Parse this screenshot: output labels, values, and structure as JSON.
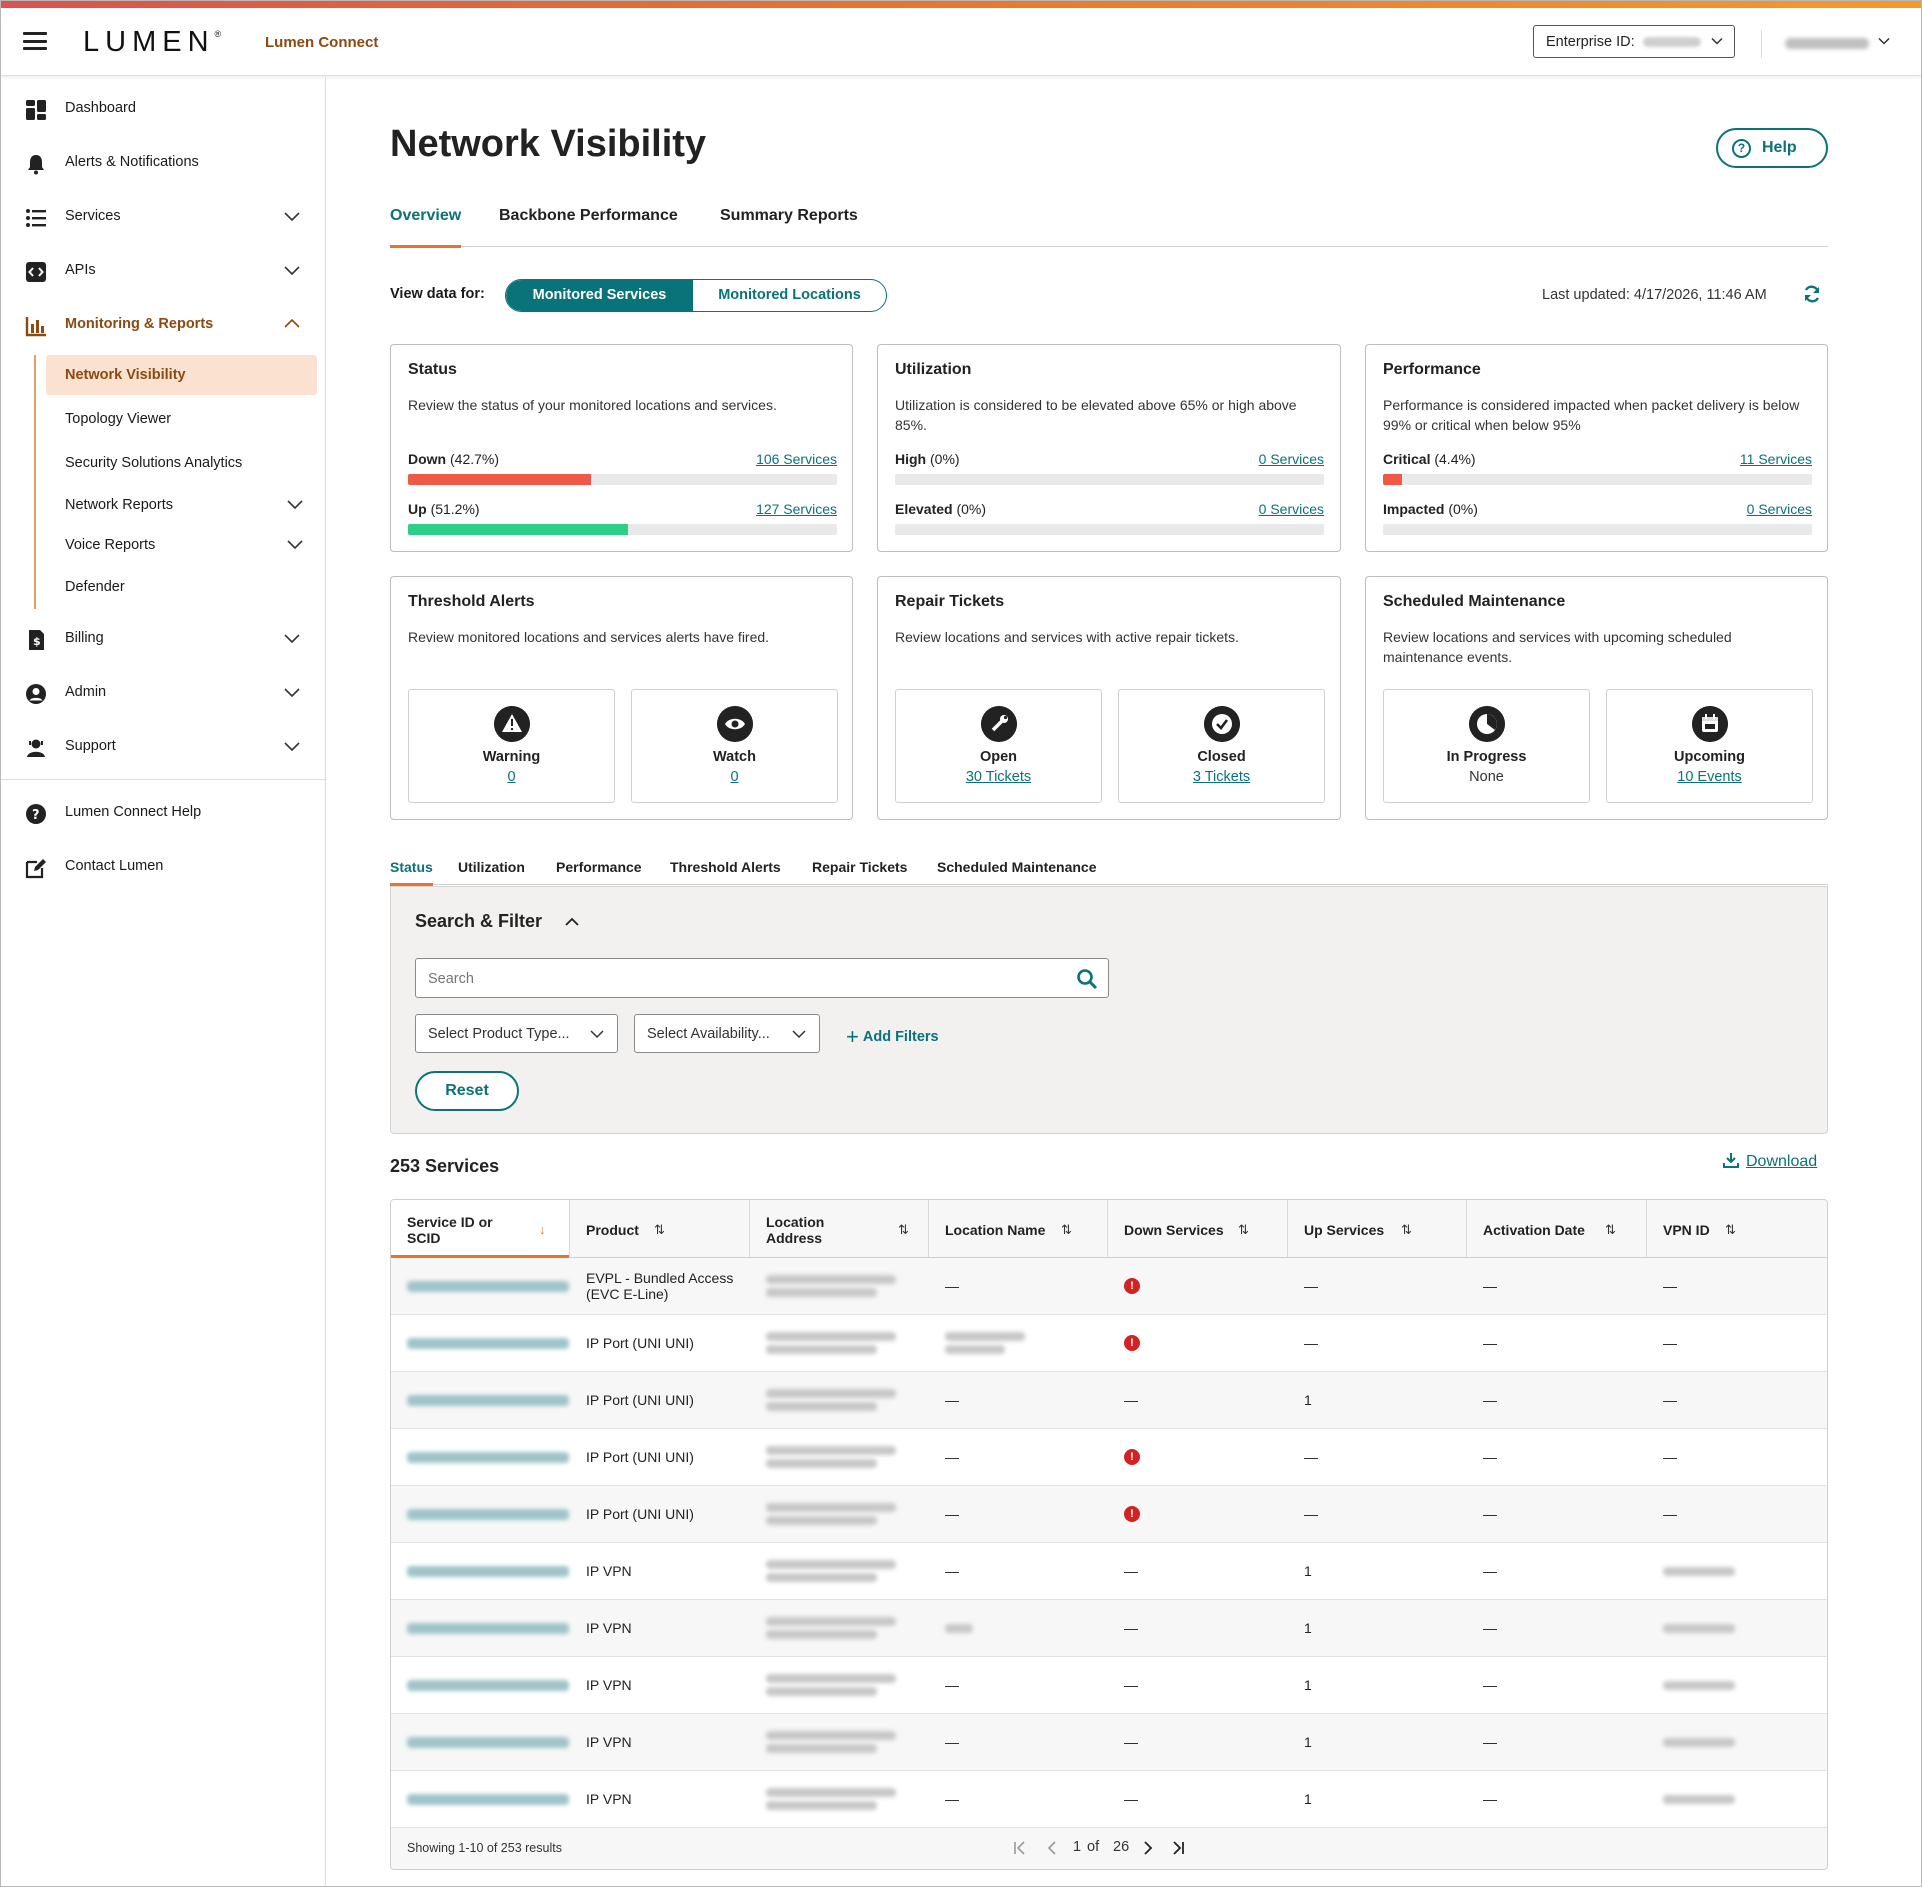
{
  "header": {
    "logo": "LUMEN",
    "app_name": "Lumen Connect",
    "enterprise_label": "Enterprise ID:"
  },
  "sidebar": {
    "items": [
      {
        "label": "Dashboard",
        "icon": "dashboard-icon"
      },
      {
        "label": "Alerts & Notifications",
        "icon": "bell-icon"
      },
      {
        "label": "Services",
        "icon": "list-icon"
      },
      {
        "label": "APIs",
        "icon": "code-icon"
      },
      {
        "label": "Monitoring & Reports",
        "icon": "chart-icon"
      }
    ],
    "sub_items": [
      "Network Visibility",
      "Topology Viewer",
      "Security Solutions Analytics",
      "Network Reports",
      "Voice Reports",
      "Defender"
    ],
    "lower_items": [
      "Billing",
      "Admin",
      "Support"
    ],
    "footer_items": [
      "Lumen Connect Help",
      "Contact Lumen"
    ]
  },
  "page": {
    "title": "Network Visibility",
    "help": "Help",
    "tabs": [
      "Overview",
      "Backbone Performance",
      "Summary Reports"
    ],
    "view_data_label": "View data for:",
    "toggle": [
      "Monitored Services",
      "Monitored Locations"
    ],
    "last_updated": "Last updated: 4/17/2026, 11:46 AM"
  },
  "cards": {
    "status": {
      "title": "Status",
      "desc": "Review the status of your monitored locations and services.",
      "metrics": [
        {
          "name": "Down",
          "pct": "(42.7%)",
          "link": "106 Services",
          "fill": 0.427,
          "color": "#ef5a47"
        },
        {
          "name": "Up",
          "pct": "(51.2%)",
          "link": "127 Services",
          "fill": 0.512,
          "color": "#2ecf88"
        }
      ]
    },
    "utilization": {
      "title": "Utilization",
      "desc": "Utilization is considered to be elevated above 65% or high above 85%.",
      "metrics": [
        {
          "name": "High",
          "pct": "(0%)",
          "link": "0 Services",
          "fill": 0
        },
        {
          "name": "Elevated",
          "pct": "(0%)",
          "link": "0 Services",
          "fill": 0
        }
      ]
    },
    "performance": {
      "title": "Performance",
      "desc": "Performance is considered impacted when packet delivery is below 99% or critical when below 95%",
      "metrics": [
        {
          "name": "Critical",
          "pct": "(4.4%)",
          "link": "11 Services",
          "fill": 0.044,
          "color": "#ef5a47"
        },
        {
          "name": "Impacted",
          "pct": "(0%)",
          "link": "0 Services",
          "fill": 0
        }
      ]
    },
    "threshold": {
      "title": "Threshold Alerts",
      "desc": "Review monitored locations and services alerts have fired.",
      "subs": [
        {
          "label": "Warning",
          "value": "0",
          "icon": "warning-icon"
        },
        {
          "label": "Watch",
          "value": "0",
          "icon": "eye-icon"
        }
      ]
    },
    "repair": {
      "title": "Repair Tickets",
      "desc": "Review locations and services with active repair tickets.",
      "subs": [
        {
          "label": "Open",
          "value": "30 Tickets",
          "icon": "wrench-icon"
        },
        {
          "label": "Closed",
          "value": "3 Tickets",
          "icon": "check-icon"
        }
      ]
    },
    "maintenance": {
      "title": "Scheduled Maintenance",
      "desc": "Review locations and services with upcoming scheduled maintenance events.",
      "subs": [
        {
          "label": "In Progress",
          "value": "None",
          "icon": "clock-icon"
        },
        {
          "label": "Upcoming",
          "value": "10 Events",
          "icon": "calendar-icon"
        }
      ]
    }
  },
  "section_tabs": [
    "Status",
    "Utilization",
    "Performance",
    "Threshold Alerts",
    "Repair Tickets",
    "Scheduled Maintenance"
  ],
  "filter": {
    "title": "Search & Filter",
    "search_placeholder": "Search",
    "product_select": "Select Product Type...",
    "availability_select": "Select Availability...",
    "add_filters": "Add Filters",
    "reset": "Reset"
  },
  "results": {
    "count": "253 Services",
    "download": "Download",
    "columns": [
      "Service ID or SCID",
      "Product",
      "Location Address",
      "Location Name",
      "Down Services",
      "Up Services",
      "Activation Date",
      "VPN ID"
    ],
    "rows": [
      {
        "product": "EVPL - Bundled Access (EVC E-Line)",
        "name": "—",
        "down": "alert",
        "up": "—",
        "date": "—",
        "vpn": "—"
      },
      {
        "product": "IP Port (UNI UNI)",
        "name": "blur",
        "down": "alert",
        "up": "—",
        "date": "—",
        "vpn": "—"
      },
      {
        "product": "IP Port (UNI UNI)",
        "name": "—",
        "down": "—",
        "up": "1",
        "date": "—",
        "vpn": "—"
      },
      {
        "product": "IP Port (UNI UNI)",
        "name": "—",
        "down": "alert",
        "up": "—",
        "date": "—",
        "vpn": "—"
      },
      {
        "product": "IP Port (UNI UNI)",
        "name": "—",
        "down": "alert",
        "up": "—",
        "date": "—",
        "vpn": "—"
      },
      {
        "product": "IP VPN",
        "name": "—",
        "down": "—",
        "up": "1",
        "date": "—",
        "vpn": "blur"
      },
      {
        "product": "IP VPN",
        "name": "blur",
        "down": "—",
        "up": "1",
        "date": "—",
        "vpn": "blur"
      },
      {
        "product": "IP VPN",
        "name": "—",
        "down": "—",
        "up": "1",
        "date": "—",
        "vpn": "blur"
      },
      {
        "product": "IP VPN",
        "name": "—",
        "down": "—",
        "up": "1",
        "date": "—",
        "vpn": "blur"
      },
      {
        "product": "IP VPN",
        "name": "—",
        "down": "—",
        "up": "1",
        "date": "—",
        "vpn": "blur"
      }
    ],
    "showing": "Showing 1-10 of 253 results",
    "page": "1",
    "of": "of",
    "total_pages": "26"
  }
}
